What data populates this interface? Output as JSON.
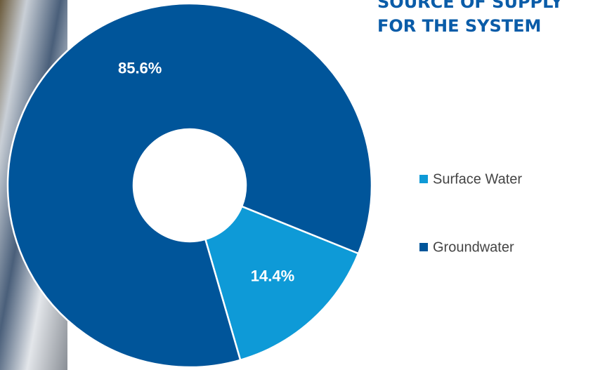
{
  "chart_data": {
    "type": "donut",
    "title": "SOURCE OF SUPPLY FOR THE SYSTEM",
    "categories": [
      "Surface Water",
      "Groundwater"
    ],
    "values": [
      14.4,
      85.6
    ],
    "value_labels": [
      "14.4%",
      "85.6%"
    ],
    "colors": [
      "#0e9ad7",
      "#00559a"
    ],
    "legend": "right"
  }
}
